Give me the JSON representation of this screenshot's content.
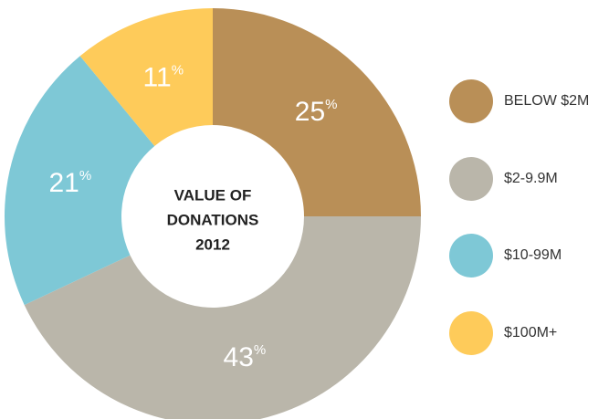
{
  "chart_data": {
    "type": "donut",
    "title": [
      "VALUE OF",
      "DONATIONS",
      "2012"
    ],
    "categories": [
      "BELOW $2M",
      "$2-9.9M",
      "$10-99M",
      "$100M+"
    ],
    "values": [
      25,
      43,
      21,
      11
    ],
    "value_labels": [
      "25%",
      "43%",
      "21%",
      "11%"
    ],
    "colors": [
      "#b98f57",
      "#bab6aa",
      "#7ec8d6",
      "#fecb5a"
    ],
    "legend": "right"
  }
}
